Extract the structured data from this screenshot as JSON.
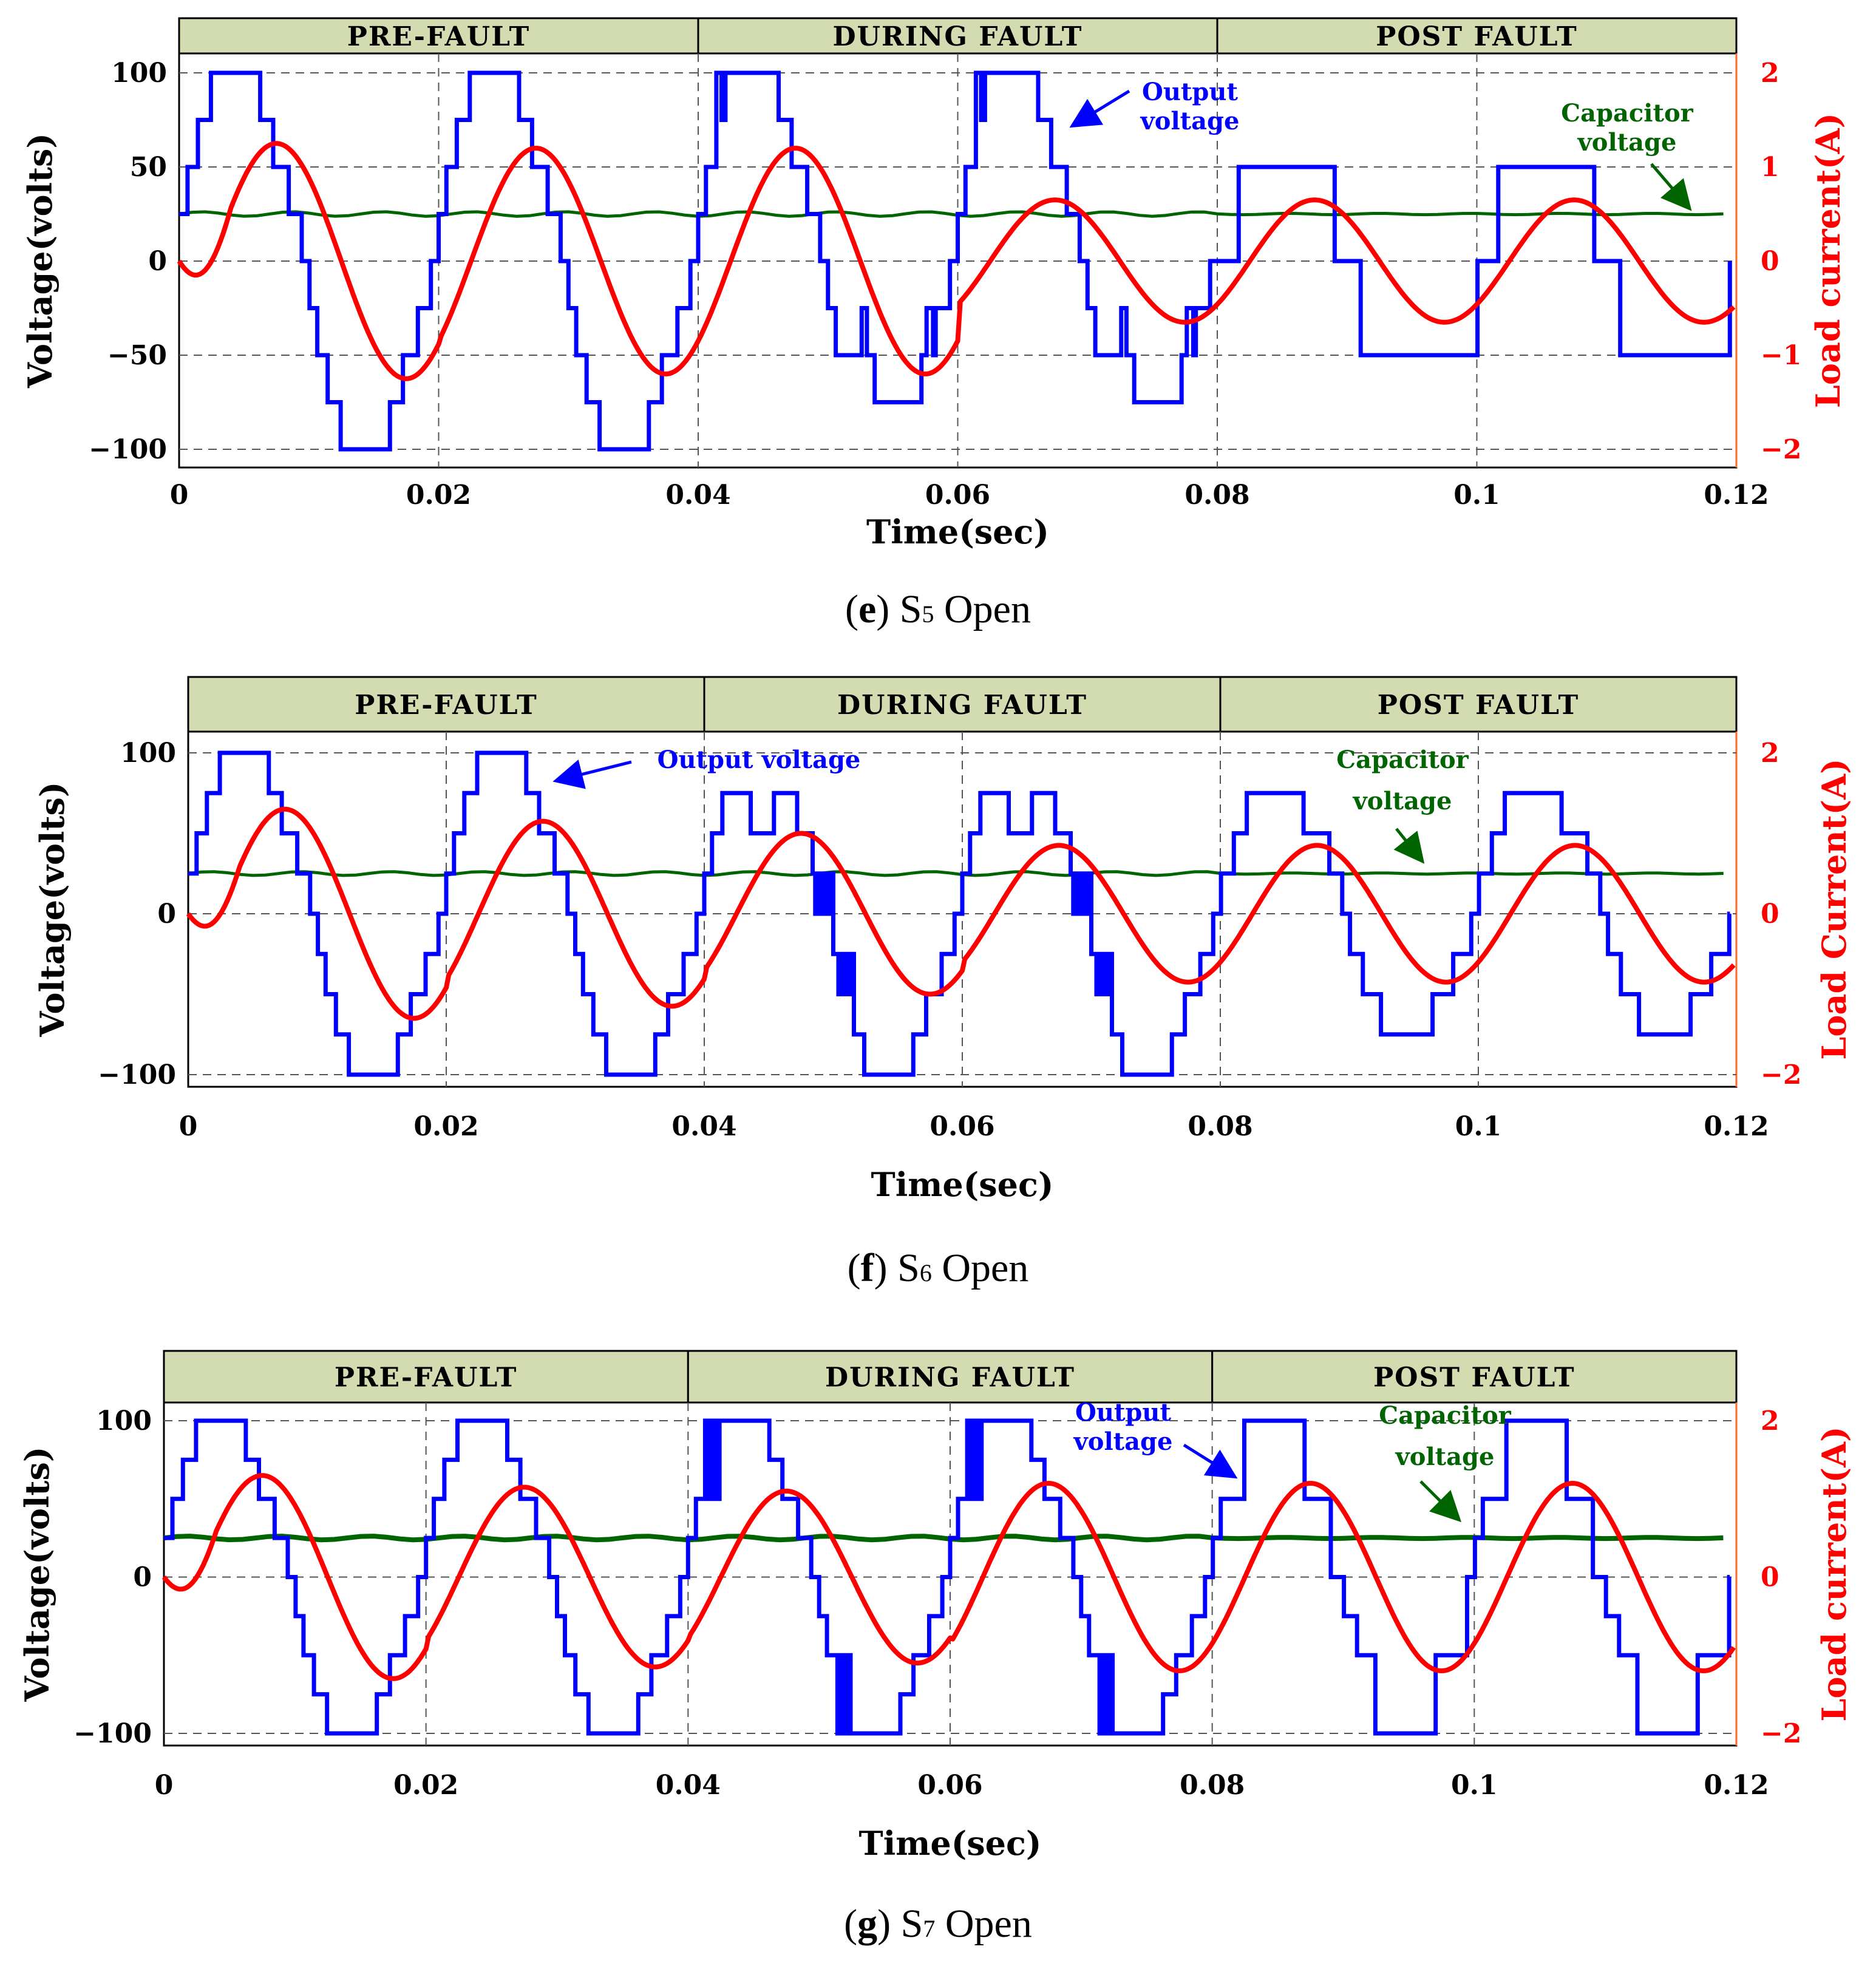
{
  "chart_data": [
    {
      "type": "line",
      "caption_tag": "e",
      "caption_text": "S5 Open",
      "caption_parts": {
        "label": "(",
        "letter": "e",
        "close": ")",
        "s": "S",
        "sub": "5",
        "open": " Open"
      },
      "xlabel": "Time(sec)",
      "ylabel": "Voltage(volts)",
      "y2label": "Load current(A)",
      "xlim": [
        0,
        0.12
      ],
      "ylim": [
        -110,
        110
      ],
      "y2lim": [
        -2.1,
        2.1
      ],
      "xticks": [
        "0",
        "0.02",
        "0.04",
        "0.06",
        "0.08",
        "0.1",
        "0.12"
      ],
      "yticks": [
        "100",
        "50",
        "0",
        "−50",
        "−100"
      ],
      "y2ticks": [
        "2",
        "1",
        "0",
        "−1",
        "−2"
      ],
      "phases": [
        "PRE-FAULT",
        "DURING FAULT",
        "POST FAULT"
      ],
      "phase_bounds": [
        0,
        0.04,
        0.08,
        0.12
      ],
      "annotations": {
        "output": "Output voltage",
        "capacitor": "Capacitor voltage"
      },
      "series": [
        {
          "name": "Output voltage",
          "axis": "left",
          "color": "#0000ff",
          "profile": "pre 100;fault5 100;post 50/-50"
        },
        {
          "name": "Load current",
          "axis": "right",
          "color": "#ff0000",
          "amplitudes": [
            1.25,
            1.2,
            1.2,
            0.65
          ]
        },
        {
          "name": "Capacitor voltage",
          "axis": "left",
          "color": "#006400",
          "value": 25
        }
      ]
    },
    {
      "type": "line",
      "caption_tag": "f",
      "caption_text": "S6 Open",
      "caption_parts": {
        "label": "(",
        "letter": "f",
        "close": ")",
        "s": "S",
        "sub": "6",
        "open": " Open"
      },
      "xlabel": "Time(sec)",
      "ylabel": "Voltage(volts)",
      "y2label": "Load Current(A)",
      "xlim": [
        0,
        0.12
      ],
      "ylim": [
        -110,
        110
      ],
      "y2lim": [
        -2.1,
        2.1
      ],
      "xticks": [
        "0",
        "0.02",
        "0.04",
        "0.06",
        "0.08",
        "0.1",
        "0.12"
      ],
      "yticks": [
        "100",
        "0",
        "−100"
      ],
      "y2ticks": [
        "2",
        "0",
        "−2"
      ],
      "phases": [
        "PRE-FAULT",
        "DURING FAULT",
        "POST FAULT"
      ],
      "phase_bounds": [
        0,
        0.04,
        0.08,
        0.12
      ],
      "annotations": {
        "output": "Output voltage",
        "capacitor": "Capacitor voltage"
      },
      "series": [
        {
          "name": "Output voltage",
          "axis": "left",
          "color": "#0000ff",
          "profile": "pre 100;fault6 75/-100;post 75/-75"
        },
        {
          "name": "Load current",
          "axis": "right",
          "color": "#ff0000",
          "amplitudes": [
            1.3,
            1.15,
            1.0,
            0.85
          ]
        },
        {
          "name": "Capacitor voltage",
          "axis": "left",
          "color": "#006400",
          "value": 25
        }
      ]
    },
    {
      "type": "line",
      "caption_tag": "g",
      "caption_text": "S7 Open",
      "caption_parts": {
        "label": "(",
        "letter": "g",
        "close": ")",
        "s": "S",
        "sub": "7",
        "open": " Open"
      },
      "xlabel": "Time(sec)",
      "ylabel": "Voltage(volts)",
      "y2label": "Load current(A)",
      "xlim": [
        0,
        0.12
      ],
      "ylim": [
        -110,
        110
      ],
      "y2lim": [
        -2.1,
        2.1
      ],
      "xticks": [
        "0",
        "0.02",
        "0.04",
        "0.06",
        "0.08",
        "0.1",
        "0.12"
      ],
      "yticks": [
        "100",
        "0",
        "−100"
      ],
      "y2ticks": [
        "2",
        "0",
        "−2"
      ],
      "phases": [
        "PRE-FAULT",
        "DURING FAULT",
        "POST FAULT"
      ],
      "phase_bounds": [
        0,
        0.04,
        0.08,
        0.12
      ],
      "annotations": {
        "output": "Output voltage",
        "capacitor": "Capacitor voltage"
      },
      "series": [
        {
          "name": "Output voltage",
          "axis": "left",
          "color": "#0000ff",
          "profile": "pre 100;fault7 100/-100;post 100/-100"
        },
        {
          "name": "Load current",
          "axis": "right",
          "color": "#ff0000",
          "amplitudes": [
            1.3,
            1.15,
            1.1,
            1.2
          ]
        },
        {
          "name": "Capacitor voltage",
          "axis": "left",
          "color": "#006400",
          "value": 25
        }
      ]
    }
  ]
}
